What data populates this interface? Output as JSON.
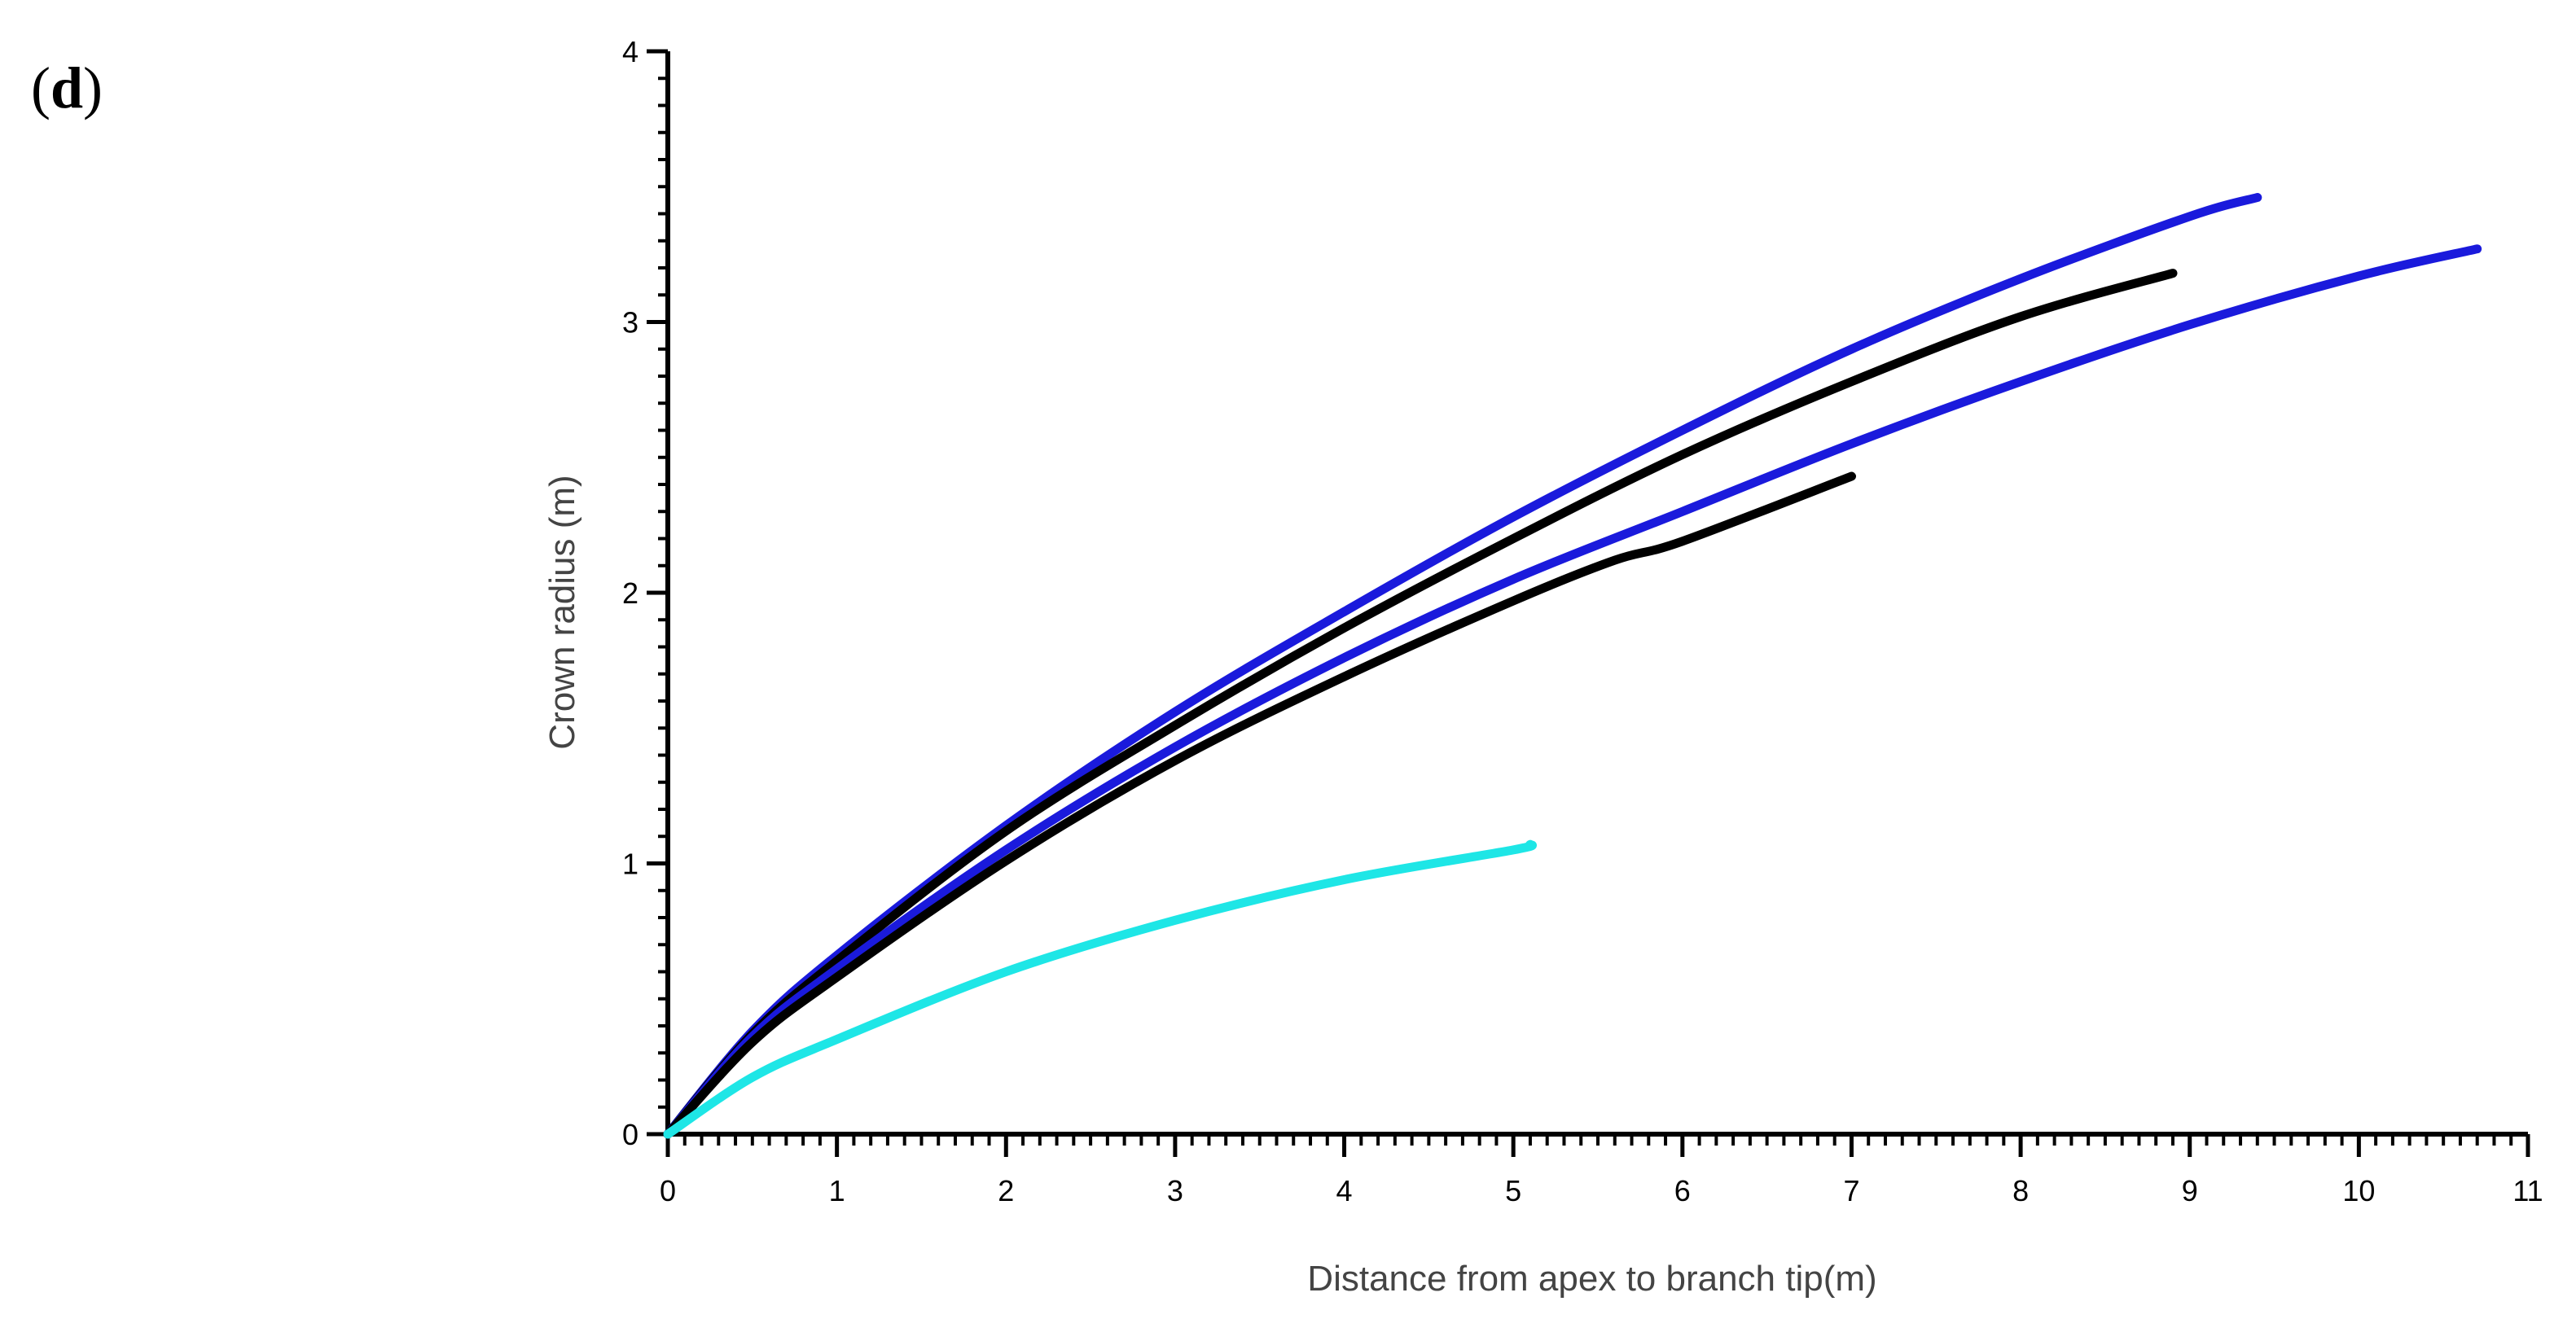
{
  "panel_label": {
    "open": "(",
    "letter": "d",
    "close": ")"
  },
  "chart_data": {
    "type": "line",
    "title": "",
    "xlabel": "Distance from apex to branch tip(m)",
    "ylabel": "Crown radius (m)",
    "xlim": [
      0,
      11
    ],
    "ylim": [
      0,
      4
    ],
    "xticks": [
      0,
      1,
      2,
      3,
      4,
      5,
      6,
      7,
      8,
      9,
      10,
      11
    ],
    "yticks": [
      0,
      1,
      2,
      3,
      4
    ],
    "grid": false,
    "legend": "none",
    "series": [
      {
        "color": "#1a1adc",
        "x": [
          0,
          0.5,
          1,
          2,
          3,
          4,
          5,
          6,
          7,
          8,
          9,
          9.4
        ],
        "y": [
          0,
          0.38,
          0.66,
          1.14,
          1.56,
          1.93,
          2.28,
          2.6,
          2.9,
          3.16,
          3.39,
          3.46
        ]
      },
      {
        "color": "#000000",
        "x": [
          0,
          0.5,
          1,
          2,
          3,
          4,
          5,
          6,
          7,
          8,
          8.9
        ],
        "y": [
          0,
          0.37,
          0.64,
          1.12,
          1.51,
          1.87,
          2.2,
          2.51,
          2.78,
          3.02,
          3.18
        ]
      },
      {
        "color": "#1a1adc",
        "x": [
          0,
          0.5,
          1,
          2,
          3,
          4,
          5,
          6,
          7,
          8,
          9,
          10,
          10.7
        ],
        "y": [
          0,
          0.36,
          0.61,
          1.05,
          1.43,
          1.76,
          2.05,
          2.3,
          2.55,
          2.78,
          2.99,
          3.17,
          3.27
        ]
      },
      {
        "color": "#000000",
        "x": [
          0,
          0.5,
          1,
          2,
          3,
          4,
          5,
          5.6,
          6,
          7
        ],
        "y": [
          0,
          0.34,
          0.58,
          1.01,
          1.38,
          1.69,
          1.97,
          2.12,
          2.19,
          2.43
        ]
      },
      {
        "color": "#1ee6e6",
        "x": [
          0,
          0.5,
          1,
          2,
          3,
          4,
          5,
          5.1
        ],
        "y": [
          0,
          0.21,
          0.35,
          0.6,
          0.79,
          0.94,
          1.05,
          1.07
        ]
      }
    ]
  }
}
